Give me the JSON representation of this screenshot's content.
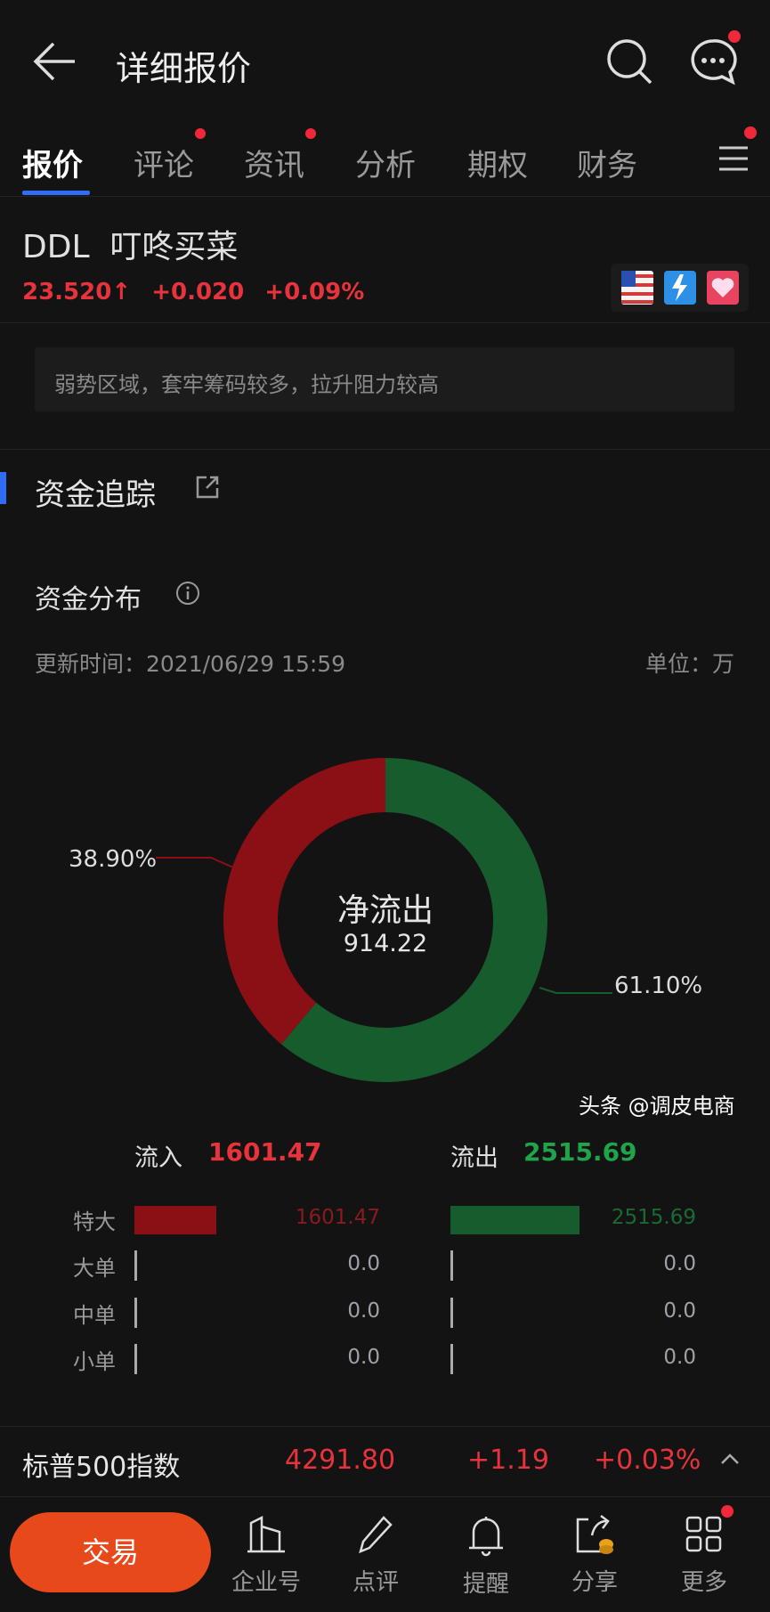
{
  "header": {
    "title": "详细报价",
    "back_icon": "arrow-left-icon",
    "search_icon": "search-icon",
    "message_icon": "chat-bubble-icon"
  },
  "tabs": [
    {
      "label": "报价",
      "active": true
    },
    {
      "label": "评论",
      "badge": true
    },
    {
      "label": "资讯",
      "badge": true
    },
    {
      "label": "分析"
    },
    {
      "label": "期权"
    },
    {
      "label": "财务"
    }
  ],
  "stock": {
    "code": "DDL",
    "name": "叮咚买菜",
    "price": "23.520",
    "arrow": "↑",
    "change": "+0.020",
    "change_pct": "+0.09%",
    "badges": [
      "us-flag-icon",
      "lv2-icon",
      "heart-icon"
    ]
  },
  "hint": "弱势区域，套牢筹码较多，拉升阻力较高",
  "section": {
    "title": "资金追踪"
  },
  "distribution": {
    "title": "资金分布",
    "update_label": "更新时间：2021/06/29 15:59",
    "unit_label": "单位：万"
  },
  "chart_data": {
    "type": "pie",
    "donut": true,
    "center_title": "净流出",
    "center_value": "914.22",
    "slices": [
      {
        "label": "38.90%",
        "value": 38.9,
        "color": "#8b1015"
      },
      {
        "label": "61.10%",
        "value": 61.1,
        "color": "#175c2c"
      }
    ]
  },
  "flows": {
    "inflow_label": "流入",
    "inflow_total": "1601.47",
    "outflow_label": "流出",
    "outflow_total": "2515.69",
    "rows": [
      {
        "label": "特大",
        "in": "1601.47",
        "out": "2515.69",
        "in_value": 1601.47,
        "out_value": 2515.69
      },
      {
        "label": "大单",
        "in": "0.0",
        "out": "0.0",
        "in_value": 0,
        "out_value": 0
      },
      {
        "label": "中单",
        "in": "0.0",
        "out": "0.0",
        "in_value": 0,
        "out_value": 0
      },
      {
        "label": "小单",
        "in": "0.0",
        "out": "0.0",
        "in_value": 0,
        "out_value": 0
      }
    ]
  },
  "index": {
    "name": "标普500指数",
    "value": "4291.80",
    "change": "+1.19",
    "change_pct": "+0.03%"
  },
  "bottom": {
    "trade": "交易",
    "items": [
      {
        "label": "企业号",
        "icon": "building-icon"
      },
      {
        "label": "点评",
        "icon": "pencil-icon"
      },
      {
        "label": "提醒",
        "icon": "bell-icon"
      },
      {
        "label": "分享",
        "icon": "share-icon"
      },
      {
        "label": "更多",
        "icon": "grid-icon"
      }
    ]
  },
  "watermark": "头条 @调皮电商",
  "colors": {
    "red": "#e8333d",
    "green": "#1fa44a",
    "accent": "#2f6df6",
    "trade": "#e8491a"
  }
}
